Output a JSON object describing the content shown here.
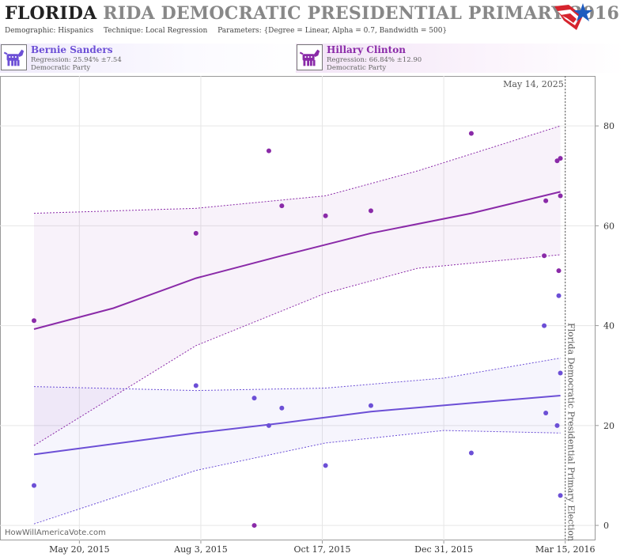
{
  "header": {
    "title_abbr": "FLORIDA",
    "title_rest": "RIDA DEMOCRATIC PRESIDENTIAL PRIMARY 2016",
    "demographic": "Demographic: Hispanics",
    "technique": "Technique: Local Regression",
    "parameters": "Parameters: {Degree = Linear, Alpha = 0.7, Bandwidth = 500}"
  },
  "candidates": [
    {
      "name": "Bernie Sanders",
      "regression": "Regression: 25.94% ±7.54",
      "party": "Democratic Party",
      "color": "#6c4fd6"
    },
    {
      "name": "Hillary Clinton",
      "regression": "Regression: 66.84% ±12.90",
      "party": "Democratic Party",
      "color": "#8a2aa8"
    }
  ],
  "date_label": "May 14, 2025",
  "election_label": "Florida Democratic Presidential Primary Election",
  "watermark": "HowWillAmericaVote.com",
  "chart_data": {
    "type": "scatter",
    "x_axis": {
      "range": [
        "2015-04-01",
        "2016-03-21"
      ],
      "ticks": [
        {
          "date": "2015-05-20",
          "label": "May 20, 2015"
        },
        {
          "date": "2015-08-03",
          "label": "Aug 3, 2015"
        },
        {
          "date": "2015-10-17",
          "label": "Oct 17, 2015"
        },
        {
          "date": "2015-12-31",
          "label": "Dec 31, 2015"
        },
        {
          "date": "2016-03-15",
          "label": "Mar 15, 2016"
        }
      ]
    },
    "y_axis": {
      "range": [
        -3,
        90
      ],
      "ticks": [
        0,
        20,
        40,
        60,
        80
      ],
      "position": "right"
    },
    "election_date": "2016-03-15",
    "grid": true,
    "series": [
      {
        "name": "Hillary Clinton",
        "color": "#8a2aa8",
        "points": [
          {
            "x": "2015-04-22",
            "y": 41
          },
          {
            "x": "2015-07-31",
            "y": 58.5
          },
          {
            "x": "2015-09-05",
            "y": 0
          },
          {
            "x": "2015-09-14",
            "y": 75
          },
          {
            "x": "2015-09-22",
            "y": 64
          },
          {
            "x": "2015-10-19",
            "y": 62
          },
          {
            "x": "2015-11-16",
            "y": 63
          },
          {
            "x": "2016-01-17",
            "y": 78.5
          },
          {
            "x": "2016-03-02",
            "y": 54
          },
          {
            "x": "2016-03-03",
            "y": 65
          },
          {
            "x": "2016-03-10",
            "y": 73
          },
          {
            "x": "2016-03-11",
            "y": 51
          },
          {
            "x": "2016-03-12",
            "y": 73.5
          },
          {
            "x": "2016-03-12",
            "y": 66
          }
        ],
        "trend": [
          {
            "x": "2015-04-22",
            "y": 39.3
          },
          {
            "x": "2015-06-10",
            "y": 43.5
          },
          {
            "x": "2015-07-31",
            "y": 49.5
          },
          {
            "x": "2015-09-22",
            "y": 54.0
          },
          {
            "x": "2015-11-16",
            "y": 58.5
          },
          {
            "x": "2016-01-17",
            "y": 62.5
          },
          {
            "x": "2016-03-12",
            "y": 66.8
          }
        ],
        "upper": [
          {
            "x": "2015-04-22",
            "y": 62.5
          },
          {
            "x": "2015-07-31",
            "y": 63.5
          },
          {
            "x": "2015-10-19",
            "y": 66.0
          },
          {
            "x": "2015-12-15",
            "y": 71.0
          },
          {
            "x": "2016-03-12",
            "y": 80.0
          }
        ],
        "lower": [
          {
            "x": "2015-04-22",
            "y": 16.0
          },
          {
            "x": "2015-07-31",
            "y": 36.0
          },
          {
            "x": "2015-10-19",
            "y": 46.5
          },
          {
            "x": "2015-12-15",
            "y": 51.5
          },
          {
            "x": "2016-03-12",
            "y": 54.2
          }
        ]
      },
      {
        "name": "Bernie Sanders",
        "color": "#6c4fd6",
        "points": [
          {
            "x": "2015-04-22",
            "y": 8
          },
          {
            "x": "2015-07-31",
            "y": 28
          },
          {
            "x": "2015-09-05",
            "y": 25.5
          },
          {
            "x": "2015-09-14",
            "y": 20
          },
          {
            "x": "2015-09-22",
            "y": 23.5
          },
          {
            "x": "2015-10-19",
            "y": 12
          },
          {
            "x": "2015-11-16",
            "y": 24
          },
          {
            "x": "2016-01-17",
            "y": 14.5
          },
          {
            "x": "2016-03-02",
            "y": 40
          },
          {
            "x": "2016-03-03",
            "y": 22.5
          },
          {
            "x": "2016-03-10",
            "y": 20
          },
          {
            "x": "2016-03-11",
            "y": 46
          },
          {
            "x": "2016-03-12",
            "y": 30.5
          },
          {
            "x": "2016-03-12",
            "y": 6
          }
        ],
        "trend": [
          {
            "x": "2015-04-22",
            "y": 14.2
          },
          {
            "x": "2015-07-31",
            "y": 18.5
          },
          {
            "x": "2015-09-22",
            "y": 20.5
          },
          {
            "x": "2015-11-16",
            "y": 22.8
          },
          {
            "x": "2016-01-17",
            "y": 24.5
          },
          {
            "x": "2016-03-12",
            "y": 26.0
          }
        ],
        "upper": [
          {
            "x": "2015-04-22",
            "y": 27.8
          },
          {
            "x": "2015-07-31",
            "y": 27.0
          },
          {
            "x": "2015-10-19",
            "y": 27.5
          },
          {
            "x": "2015-12-31",
            "y": 29.5
          },
          {
            "x": "2016-03-12",
            "y": 33.5
          }
        ],
        "lower": [
          {
            "x": "2015-04-22",
            "y": 0.3
          },
          {
            "x": "2015-07-31",
            "y": 11.0
          },
          {
            "x": "2015-10-19",
            "y": 16.5
          },
          {
            "x": "2015-12-31",
            "y": 19.0
          },
          {
            "x": "2016-03-12",
            "y": 18.5
          }
        ]
      }
    ]
  }
}
